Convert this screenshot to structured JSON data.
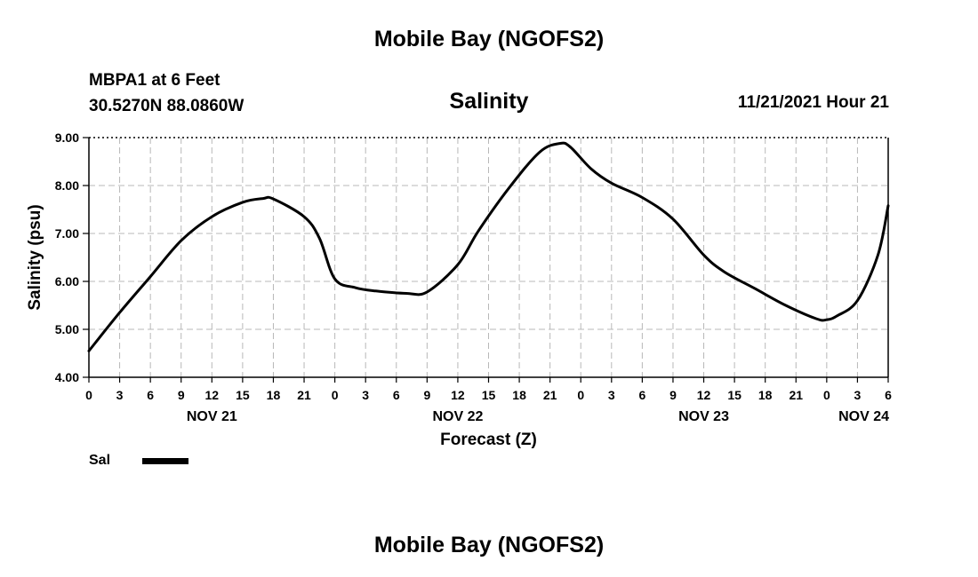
{
  "header": {
    "main_title": "Mobile Bay (NGOFS2)",
    "station_line1": "MBPA1 at 6 Feet",
    "station_line2": "30.5270N  88.0860W",
    "variable_title": "Salinity",
    "timestamp": "11/21/2021 Hour 21"
  },
  "footer": {
    "title": "Mobile Bay (NGOFS2)"
  },
  "legend": {
    "label": "Sal",
    "color": "#000000"
  },
  "chart_data": {
    "type": "line",
    "title": "Salinity",
    "xlabel": "Forecast (Z)",
    "ylabel": "Salinity (psu)",
    "ylim": [
      4.0,
      9.0
    ],
    "xlim_hours": [
      0,
      78
    ],
    "yticks": [
      "4.00",
      "5.00",
      "6.00",
      "7.00",
      "8.00",
      "9.00"
    ],
    "xticks": [
      "0",
      "3",
      "6",
      "9",
      "12",
      "15",
      "18",
      "21",
      "0",
      "3",
      "6",
      "9",
      "12",
      "15",
      "18",
      "21",
      "0",
      "3",
      "6",
      "9",
      "12",
      "15",
      "18",
      "21",
      "0",
      "3",
      "6"
    ],
    "day_labels": [
      {
        "label": "NOV 21",
        "hour": 12
      },
      {
        "label": "NOV 22",
        "hour": 36
      },
      {
        "label": "NOV 23",
        "hour": 60
      },
      {
        "label": "NOV 24",
        "hour": 78
      }
    ],
    "grid": true,
    "legend_position": "bottom-left",
    "series": [
      {
        "name": "Sal",
        "x": [
          0,
          3,
          6,
          9,
          12,
          15,
          17,
          18,
          21,
          22.5,
          24,
          26,
          28,
          31,
          33,
          36,
          38,
          41,
          44,
          46,
          47,
          49,
          51,
          54,
          57,
          60,
          62,
          65,
          68,
          71,
          72,
          73,
          75,
          77,
          78
        ],
        "values": [
          4.55,
          5.35,
          6.1,
          6.85,
          7.35,
          7.65,
          7.73,
          7.72,
          7.35,
          6.9,
          6.05,
          5.87,
          5.8,
          5.75,
          5.78,
          6.35,
          7.05,
          7.95,
          8.7,
          8.88,
          8.8,
          8.35,
          8.05,
          7.75,
          7.3,
          6.55,
          6.2,
          5.85,
          5.5,
          5.22,
          5.2,
          5.28,
          5.6,
          6.55,
          7.58
        ]
      }
    ]
  }
}
